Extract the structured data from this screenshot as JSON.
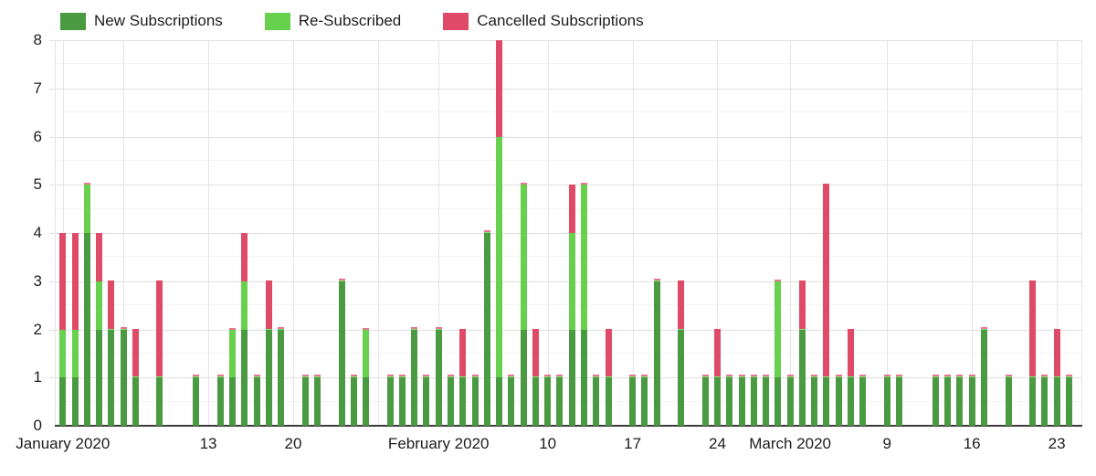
{
  "legend": {
    "items": [
      {
        "label": "New Subscriptions",
        "color": "#4a9a41"
      },
      {
        "label": "Re-Subscribed",
        "color": "#67d04d"
      },
      {
        "label": "Cancelled Subscriptions",
        "color": "#df4a68"
      }
    ]
  },
  "colors": {
    "new": "#4a9a41",
    "re": "#67d04d",
    "cancelled": "#df4a68",
    "grid_major": "#e0e0e0",
    "grid_minor": "#f3f3f3",
    "axis_line": "#3b3b3b",
    "label_text": "#1c1c1c"
  },
  "chart_data": {
    "type": "bar",
    "stacked": true,
    "title": "",
    "xlabel": "",
    "ylabel": "",
    "legend_position": "top-left",
    "grid": true,
    "series_names": [
      "New Subscriptions",
      "Re-Subscribed",
      "Cancelled Subscriptions"
    ],
    "x_axis": {
      "unit": "day",
      "range_days": 85,
      "ticks": [
        {
          "day": 0,
          "label": "January 2020"
        },
        {
          "day": 12,
          "label": "13"
        },
        {
          "day": 19,
          "label": "20"
        },
        {
          "day": 31,
          "label": "February 2020"
        },
        {
          "day": 40,
          "label": "10"
        },
        {
          "day": 47,
          "label": "17"
        },
        {
          "day": 54,
          "label": "24"
        },
        {
          "day": 60,
          "label": "March 2020"
        },
        {
          "day": 68,
          "label": "9"
        },
        {
          "day": 75,
          "label": "16"
        },
        {
          "day": 82,
          "label": "23"
        }
      ],
      "unlabeled_gridline_days": [
        5,
        26
      ]
    },
    "y_axis": {
      "min": 0,
      "max": 8,
      "step": 1,
      "minor_step": 0.5
    },
    "bar_columns": [
      "day",
      "new",
      "re_subscribed",
      "cancelled"
    ],
    "bars": [
      [
        0,
        1,
        1,
        2
      ],
      [
        1,
        1,
        1,
        2
      ],
      [
        2,
        4,
        1,
        0
      ],
      [
        3,
        2,
        1,
        1
      ],
      [
        4,
        2,
        0,
        1
      ],
      [
        5,
        2,
        0,
        0
      ],
      [
        6,
        1,
        0,
        1
      ],
      [
        8,
        1,
        0,
        2
      ],
      [
        11,
        1,
        0,
        0
      ],
      [
        13,
        1,
        0,
        0
      ],
      [
        14,
        1,
        1,
        0
      ],
      [
        15,
        2,
        1,
        1
      ],
      [
        16,
        1,
        0,
        0
      ],
      [
        17,
        2,
        0,
        1
      ],
      [
        18,
        2,
        0,
        0
      ],
      [
        20,
        1,
        0,
        0
      ],
      [
        21,
        1,
        0,
        0
      ],
      [
        23,
        3,
        0,
        0
      ],
      [
        24,
        1,
        0,
        0
      ],
      [
        25,
        1,
        1,
        0
      ],
      [
        27,
        1,
        0,
        0
      ],
      [
        28,
        1,
        0,
        0
      ],
      [
        29,
        2,
        0,
        0
      ],
      [
        30,
        1,
        0,
        0
      ],
      [
        31,
        2,
        0,
        0
      ],
      [
        32,
        1,
        0,
        0
      ],
      [
        33,
        1,
        0,
        1
      ],
      [
        34,
        1,
        0,
        0
      ],
      [
        35,
        4,
        0,
        0
      ],
      [
        36,
        1,
        5,
        2
      ],
      [
        37,
        1,
        0,
        0
      ],
      [
        38,
        2,
        3,
        0
      ],
      [
        39,
        1,
        0,
        1
      ],
      [
        40,
        1,
        0,
        0
      ],
      [
        41,
        1,
        0,
        0
      ],
      [
        42,
        2,
        2,
        1
      ],
      [
        43,
        2,
        3,
        0
      ],
      [
        44,
        1,
        0,
        0
      ],
      [
        45,
        1,
        0,
        1
      ],
      [
        47,
        1,
        0,
        0
      ],
      [
        48,
        1,
        0,
        0
      ],
      [
        49,
        3,
        0,
        0
      ],
      [
        51,
        2,
        0,
        1
      ],
      [
        53,
        1,
        0,
        0
      ],
      [
        54,
        1,
        0,
        1
      ],
      [
        55,
        1,
        0,
        0
      ],
      [
        56,
        1,
        0,
        0
      ],
      [
        57,
        1,
        0,
        0
      ],
      [
        58,
        1,
        0,
        0
      ],
      [
        59,
        1,
        2,
        0
      ],
      [
        60,
        1,
        0,
        0
      ],
      [
        61,
        2,
        0,
        1
      ],
      [
        62,
        1,
        0,
        0
      ],
      [
        63,
        1,
        0,
        4
      ],
      [
        64,
        1,
        0,
        0
      ],
      [
        65,
        1,
        0,
        1
      ],
      [
        66,
        1,
        0,
        0
      ],
      [
        68,
        1,
        0,
        0
      ],
      [
        69,
        1,
        0,
        0
      ],
      [
        72,
        1,
        0,
        0
      ],
      [
        73,
        1,
        0,
        0
      ],
      [
        74,
        1,
        0,
        0
      ],
      [
        75,
        1,
        0,
        0
      ],
      [
        76,
        2,
        0,
        0
      ],
      [
        78,
        1,
        0,
        0
      ],
      [
        80,
        1,
        0,
        2
      ],
      [
        81,
        1,
        0,
        0
      ],
      [
        82,
        1,
        0,
        1
      ],
      [
        83,
        1,
        0,
        0
      ]
    ]
  }
}
